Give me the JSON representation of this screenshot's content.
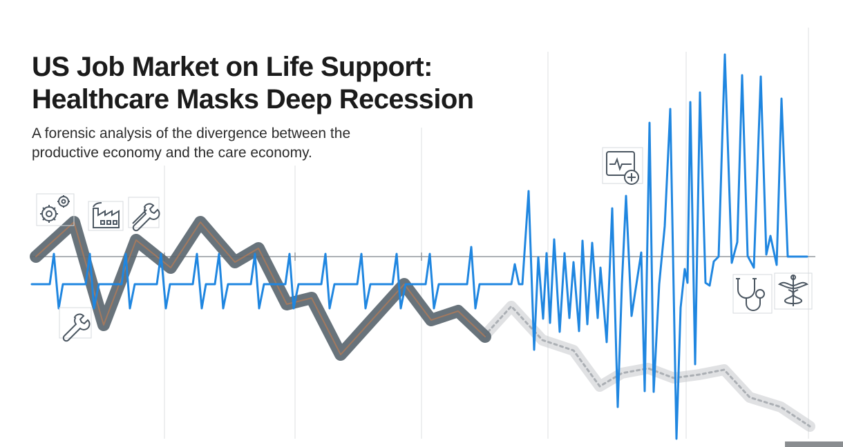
{
  "header": {
    "title_line1": "US Job Market on Life Support:",
    "title_line2": "Healthcare Masks Deep Recession",
    "subtitle_line1": "A forensic analysis of the divergence between the",
    "subtitle_line2": "productive economy and the care economy."
  },
  "colors": {
    "background": "#ffffff",
    "productive_economy_line": "#5b6770",
    "productive_economy_core": "#a87a5c",
    "care_economy_line": "#1f86e0",
    "baseline": "#8f959b",
    "gridline": "#d8dbde",
    "icon_stroke": "#4a5560",
    "title": "#1b1b1b"
  },
  "icons": {
    "productive": [
      "gears-icon",
      "factory-icon",
      "wrench-icon",
      "wrench-icon"
    ],
    "care": [
      "heart-monitor-icon",
      "stethoscope-icon",
      "caduceus-icon"
    ]
  }
}
